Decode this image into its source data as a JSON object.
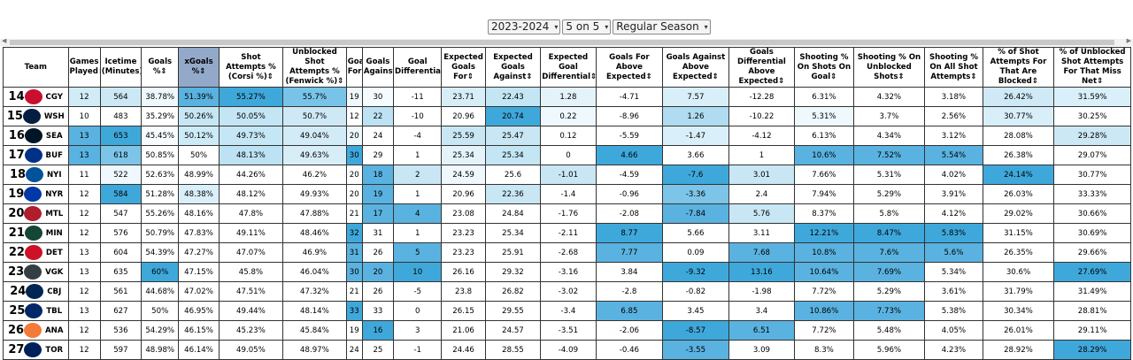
{
  "filters": {
    "season": "2023-2024",
    "strength": "5 on 5",
    "season_type": "Regular Season"
  },
  "table": {
    "headers": [
      "Team",
      "Games Played⇕",
      "Icetime (Minutes)⇕",
      "Goals %⇕",
      "xGoals %⇕",
      "Shot Attempts % (Corsi %)⇕",
      "Unblocked Shot Attempts % (Fenwick %)⇕",
      "Goals For⇕",
      "Goals Against⇕",
      "Goal Differential⇕",
      "Expected Goals For⇕",
      "Expected Goals Against⇕",
      "Expected Goal Differential⇕",
      "Goals For Above Expected⇕",
      "Goals Against Above Expected⇕",
      "Goals Differential Above Expected⇕",
      "Shooting % On Shots On Goal⇕",
      "Shooting % On Unblocked Shots⇕",
      "Shooting % On All Shot Attempts⇕",
      "% of Shot Attempts For That Are Blocked⇕",
      "% of Unblocked Shot Attempts For That Miss Net⇕"
    ],
    "sorted_column": 4,
    "rows": [
      {
        "rank": "14",
        "team": "CGY",
        "logo_color": "#c8102e",
        "cells": [
          "12",
          "564",
          "38.78%",
          "51.39%",
          "55.27%",
          "55.7%",
          "19",
          "30",
          "-11",
          "23.71",
          "22.43",
          "1.28",
          "-4.71",
          "7.57",
          "-12.28",
          "6.31%",
          "4.32%",
          "3.18%",
          "26.42%",
          "31.59%"
        ]
      },
      {
        "rank": "15",
        "team": "WSH",
        "logo_color": "#041e42",
        "cells": [
          "10",
          "483",
          "35.29%",
          "50.26%",
          "50.05%",
          "50.7%",
          "12",
          "22",
          "-10",
          "20.96",
          "20.74",
          "0.22",
          "-8.96",
          "1.26",
          "-10.22",
          "5.31%",
          "3.7%",
          "2.56%",
          "30.77%",
          "30.25%"
        ]
      },
      {
        "rank": "16",
        "team": "SEA",
        "logo_color": "#001628",
        "cells": [
          "13",
          "653",
          "45.45%",
          "50.12%",
          "49.73%",
          "49.04%",
          "20",
          "24",
          "-4",
          "25.59",
          "25.47",
          "0.12",
          "-5.59",
          "-1.47",
          "-4.12",
          "6.13%",
          "4.34%",
          "3.12%",
          "28.08%",
          "29.28%"
        ]
      },
      {
        "rank": "17",
        "team": "BUF",
        "logo_color": "#003087",
        "cells": [
          "13",
          "618",
          "50.85%",
          "50%",
          "48.13%",
          "49.63%",
          "30",
          "29",
          "1",
          "25.34",
          "25.34",
          "0",
          "4.66",
          "3.66",
          "1",
          "10.6%",
          "7.52%",
          "5.54%",
          "26.38%",
          "29.07%"
        ]
      },
      {
        "rank": "18",
        "team": "NYI",
        "logo_color": "#00539b",
        "cells": [
          "11",
          "522",
          "52.63%",
          "48.99%",
          "44.26%",
          "46.2%",
          "20",
          "18",
          "2",
          "24.59",
          "25.6",
          "-1.01",
          "-4.59",
          "-7.6",
          "3.01",
          "7.66%",
          "5.31%",
          "4.02%",
          "24.14%",
          "30.77%"
        ]
      },
      {
        "rank": "19",
        "team": "NYR",
        "logo_color": "#0038a8",
        "cells": [
          "12",
          "584",
          "51.28%",
          "48.38%",
          "48.12%",
          "49.93%",
          "20",
          "19",
          "1",
          "20.96",
          "22.36",
          "-1.4",
          "-0.96",
          "-3.36",
          "2.4",
          "7.94%",
          "5.29%",
          "3.91%",
          "26.03%",
          "33.33%"
        ]
      },
      {
        "rank": "20",
        "team": "MTL",
        "logo_color": "#af1e2d",
        "cells": [
          "12",
          "547",
          "55.26%",
          "48.16%",
          "47.8%",
          "47.88%",
          "21",
          "17",
          "4",
          "23.08",
          "24.84",
          "-1.76",
          "-2.08",
          "-7.84",
          "5.76",
          "8.37%",
          "5.8%",
          "4.12%",
          "29.02%",
          "30.66%"
        ]
      },
      {
        "rank": "21",
        "team": "MIN",
        "logo_color": "#154734",
        "cells": [
          "12",
          "576",
          "50.79%",
          "47.83%",
          "49.11%",
          "48.46%",
          "32",
          "31",
          "1",
          "23.23",
          "25.34",
          "-2.11",
          "8.77",
          "5.66",
          "3.11",
          "12.21%",
          "8.47%",
          "5.83%",
          "31.15%",
          "30.69%"
        ]
      },
      {
        "rank": "22",
        "team": "DET",
        "logo_color": "#ce1126",
        "cells": [
          "13",
          "604",
          "54.39%",
          "47.27%",
          "47.07%",
          "46.9%",
          "31",
          "26",
          "5",
          "23.23",
          "25.91",
          "-2.68",
          "7.77",
          "0.09",
          "7.68",
          "10.8%",
          "7.6%",
          "5.6%",
          "26.35%",
          "29.66%"
        ]
      },
      {
        "rank": "23",
        "team": "VGK",
        "logo_color": "#333f42",
        "cells": [
          "13",
          "635",
          "60%",
          "47.15%",
          "45.8%",
          "46.04%",
          "30",
          "20",
          "10",
          "26.16",
          "29.32",
          "-3.16",
          "3.84",
          "-9.32",
          "13.16",
          "10.64%",
          "7.69%",
          "5.34%",
          "30.6%",
          "27.69%"
        ]
      },
      {
        "rank": "24",
        "team": "CBJ",
        "logo_color": "#002654",
        "cells": [
          "12",
          "561",
          "44.68%",
          "47.02%",
          "47.51%",
          "47.32%",
          "21",
          "26",
          "-5",
          "23.8",
          "26.82",
          "-3.02",
          "-2.8",
          "-0.82",
          "-1.98",
          "7.72%",
          "5.29%",
          "3.61%",
          "31.79%",
          "31.49%"
        ]
      },
      {
        "rank": "25",
        "team": "TBL",
        "logo_color": "#002868",
        "cells": [
          "13",
          "627",
          "50%",
          "46.95%",
          "49.44%",
          "48.14%",
          "33",
          "33",
          "0",
          "26.15",
          "29.55",
          "-3.4",
          "6.85",
          "3.45",
          "3.4",
          "10.86%",
          "7.73%",
          "5.38%",
          "30.34%",
          "28.81%"
        ]
      },
      {
        "rank": "26",
        "team": "ANA",
        "logo_color": "#f47a38",
        "cells": [
          "12",
          "536",
          "54.29%",
          "46.15%",
          "45.23%",
          "45.84%",
          "19",
          "16",
          "3",
          "21.06",
          "24.57",
          "-3.51",
          "-2.06",
          "-8.57",
          "6.51",
          "7.72%",
          "5.48%",
          "4.05%",
          "26.01%",
          "29.11%"
        ]
      },
      {
        "rank": "27",
        "team": "TOR",
        "logo_color": "#00205b",
        "cells": [
          "12",
          "597",
          "48.98%",
          "46.14%",
          "49.05%",
          "48.97%",
          "24",
          "25",
          "-1",
          "24.46",
          "28.55",
          "-4.09",
          "-0.46",
          "-3.55",
          "3.09",
          "8.3%",
          "5.96%",
          "4.23%",
          "28.92%",
          "28.29%"
        ]
      }
    ],
    "shading": [
      [
        "#d1ecf7",
        "#cde8f5",
        "#eef8fd",
        "#5ab2e0",
        "#3fa8db",
        "#78c4e8",
        "#eef8fd",
        "#f5fbfe",
        "#ffffff",
        "#d7eef8",
        "#c3e5f4",
        "#e4f3fa",
        "#ffffff",
        "#d8eef8",
        "#ffffff",
        "#ffffff",
        "#ffffff",
        "#ffffff",
        "#cfe9f6",
        "#d9eff9"
      ],
      [
        "#ffffff",
        "#ffffff",
        "#ffffff",
        "#c7e6f4",
        "#c3e5f4",
        "#cee8f5",
        "#ffffff",
        "#bde2f3",
        "#ffffff",
        "#ffffff",
        "#3fa8db",
        "#eef8fd",
        "#ffffff",
        "#afdcf0",
        "#ffffff",
        "#eef8fd",
        "#ffffff",
        "#ffffff",
        "#d8eef8",
        "#ffffff"
      ],
      [
        "#5ab2e0",
        "#3fa8db",
        "#f8fcfe",
        "#ccebf7",
        "#c5e7f5",
        "#d3ebf7",
        "#eef8fd",
        "#ffffff",
        "#ffffff",
        "#c9e6f4",
        "#c9e6f4",
        "#ffffff",
        "#ffffff",
        "#d9eff9",
        "#ffffff",
        "#ffffff",
        "#ffffff",
        "#ffffff",
        "#ffffff",
        "#cde8f5"
      ],
      [
        "#5ab2e0",
        "#7cc5e8",
        "#ffffff",
        "#ffffff",
        "#bde2f3",
        "#d7eef8",
        "#3fa8db",
        "#ffffff",
        "#ffffff",
        "#e4f3fa",
        "#c3e5f4",
        "#ffffff",
        "#3fa8db",
        "#ffffff",
        "#ffffff",
        "#5ab2e0",
        "#5ab2e0",
        "#5ab2e0",
        "#ffffff",
        "#ffffff"
      ],
      [
        "#ffffff",
        "#eef8fd",
        "#ffffff",
        "#ffffff",
        "#ffffff",
        "#ffffff",
        "#ffffff",
        "#5ab2e0",
        "#c9e6f4",
        "#eef8fd",
        "#ffffff",
        "#c9e6f4",
        "#ffffff",
        "#3fa8db",
        "#c9e6f4",
        "#ffffff",
        "#ffffff",
        "#ffffff",
        "#3fa8db",
        "#ffffff"
      ],
      [
        "#ffffff",
        "#3fa8db",
        "#ffffff",
        "#d9eff9",
        "#ffffff",
        "#ffffff",
        "#ffffff",
        "#5ab2e0",
        "#ffffff",
        "#ffffff",
        "#c9e6f4",
        "#ffffff",
        "#ffffff",
        "#7cc5e8",
        "#ffffff",
        "#ffffff",
        "#ffffff",
        "#ffffff",
        "#ffffff",
        "#ffffff"
      ],
      [
        "#ffffff",
        "#ffffff",
        "#ffffff",
        "#ffffff",
        "#ffffff",
        "#ffffff",
        "#ffffff",
        "#5ab2e0",
        "#5ab2e0",
        "#ffffff",
        "#ffffff",
        "#ffffff",
        "#ffffff",
        "#5ab2e0",
        "#c9e6f4",
        "#ffffff",
        "#ffffff",
        "#ffffff",
        "#ffffff",
        "#ffffff"
      ],
      [
        "#ffffff",
        "#ffffff",
        "#ffffff",
        "#ffffff",
        "#ffffff",
        "#ffffff",
        "#3fa8db",
        "#ffffff",
        "#ffffff",
        "#ffffff",
        "#ffffff",
        "#ffffff",
        "#3fa8db",
        "#ffffff",
        "#ffffff",
        "#3fa8db",
        "#3fa8db",
        "#3fa8db",
        "#ffffff",
        "#ffffff"
      ],
      [
        "#ffffff",
        "#ffffff",
        "#ffffff",
        "#ffffff",
        "#ffffff",
        "#ffffff",
        "#5ab2e0",
        "#ffffff",
        "#5ab2e0",
        "#ffffff",
        "#ffffff",
        "#ffffff",
        "#5ab2e0",
        "#ffffff",
        "#5ab2e0",
        "#5ab2e0",
        "#5ab2e0",
        "#5ab2e0",
        "#ffffff",
        "#ffffff"
      ],
      [
        "#ffffff",
        "#ffffff",
        "#3fa8db",
        "#ffffff",
        "#ffffff",
        "#ffffff",
        "#5ab2e0",
        "#5ab2e0",
        "#3fa8db",
        "#ffffff",
        "#ffffff",
        "#ffffff",
        "#ffffff",
        "#3fa8db",
        "#3fa8db",
        "#5ab2e0",
        "#5ab2e0",
        "#ffffff",
        "#ffffff",
        "#3fa8db"
      ],
      [
        "#ffffff",
        "#ffffff",
        "#ffffff",
        "#ffffff",
        "#ffffff",
        "#ffffff",
        "#ffffff",
        "#ffffff",
        "#ffffff",
        "#ffffff",
        "#ffffff",
        "#ffffff",
        "#ffffff",
        "#ffffff",
        "#ffffff",
        "#ffffff",
        "#ffffff",
        "#ffffff",
        "#ffffff",
        "#ffffff"
      ],
      [
        "#ffffff",
        "#ffffff",
        "#ffffff",
        "#ffffff",
        "#ffffff",
        "#ffffff",
        "#3fa8db",
        "#ffffff",
        "#ffffff",
        "#ffffff",
        "#ffffff",
        "#ffffff",
        "#5ab2e0",
        "#ffffff",
        "#ffffff",
        "#5ab2e0",
        "#5ab2e0",
        "#ffffff",
        "#ffffff",
        "#ffffff"
      ],
      [
        "#ffffff",
        "#ffffff",
        "#ffffff",
        "#ffffff",
        "#ffffff",
        "#ffffff",
        "#ffffff",
        "#3fa8db",
        "#ffffff",
        "#ffffff",
        "#ffffff",
        "#ffffff",
        "#ffffff",
        "#3fa8db",
        "#5ab2e0",
        "#ffffff",
        "#ffffff",
        "#ffffff",
        "#ffffff",
        "#ffffff"
      ],
      [
        "#ffffff",
        "#ffffff",
        "#ffffff",
        "#ffffff",
        "#ffffff",
        "#ffffff",
        "#ffffff",
        "#ffffff",
        "#ffffff",
        "#ffffff",
        "#ffffff",
        "#ffffff",
        "#ffffff",
        "#5ab2e0",
        "#ffffff",
        "#ffffff",
        "#ffffff",
        "#ffffff",
        "#ffffff",
        "#3fa8db"
      ]
    ]
  }
}
